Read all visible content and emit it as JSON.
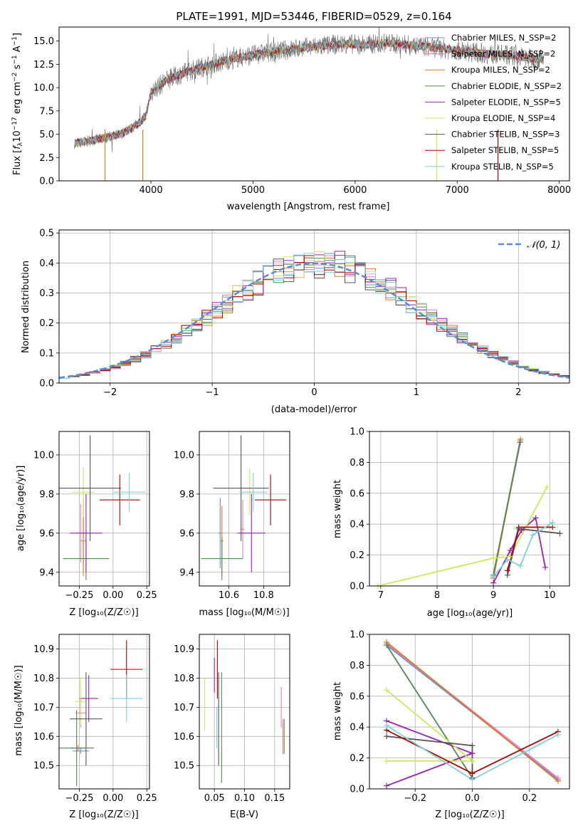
{
  "colors": {
    "chabrier_miles": "#6a8fd8",
    "salpeter_miles": "#f07ab8",
    "kroupa_miles": "#e07a22",
    "chabrier_elodie": "#4f8a4f",
    "salpeter_elodie": "#9b1fb5",
    "kroupa_elodie": "#cde85a",
    "chabrier_stelib": "#555555",
    "salpeter_stelib": "#b00000",
    "kroupa_stelib": "#7fd0d8",
    "normal": "#5b8bd8",
    "grid": "#b0b0b0"
  },
  "chart_data": [
    {
      "id": "spectrum",
      "type": "line",
      "title": "PLATE=1991, MJD=53446, FIBERID=0529, z=0.164",
      "xlabel": "wavelength [Angstrom, rest frame]",
      "ylabel": "Flux [f_λ 10^-17 erg cm^-2 s^-1 A^-1]",
      "xlim": [
        3100,
        8100
      ],
      "ylim": [
        0,
        16.5
      ],
      "xticks": [
        4000,
        5000,
        6000,
        7000,
        8000
      ],
      "yticks": [
        0.0,
        2.5,
        5.0,
        7.5,
        10.0,
        12.5,
        15.0
      ],
      "ytick_labels": [
        "0.0",
        "2.5",
        "5.0",
        "7.5",
        "10.0",
        "12.5",
        "15.0"
      ],
      "legend_position": "top-right",
      "legend": [
        {
          "name": "Chabrier MILES, N_SSP=2",
          "key": "chabrier_miles"
        },
        {
          "name": "Salpeter MILES, N_SSP=2",
          "key": "salpeter_miles"
        },
        {
          "name": "Kroupa MILES, N_SSP=2",
          "key": "kroupa_miles"
        },
        {
          "name": "Chabrier ELODIE, N_SSP=2",
          "key": "chabrier_elodie"
        },
        {
          "name": "Salpeter ELODIE, N_SSP=5",
          "key": "salpeter_elodie"
        },
        {
          "name": "Kroupa ELODIE, N_SSP=4",
          "key": "kroupa_elodie"
        },
        {
          "name": "Chabrier STELIB, N_SSP=3",
          "key": "chabrier_stelib"
        },
        {
          "name": "Salpeter STELIB, N_SSP=5",
          "key": "salpeter_stelib"
        },
        {
          "name": "Kroupa STELIB, N_SSP=5",
          "key": "kroupa_stelib"
        }
      ],
      "observed_envelope": {
        "x": [
          3250,
          3400,
          3550,
          3700,
          3800,
          3900,
          3950,
          4000,
          4150,
          4300,
          4500,
          4700,
          4900,
          5100,
          5300,
          5500,
          5700,
          5900,
          6100,
          6300,
          6500,
          6700,
          6900,
          7100,
          7300,
          7500,
          7700,
          7850
        ],
        "y": [
          4.0,
          4.3,
          4.6,
          5.0,
          5.6,
          6.3,
          7.0,
          9.5,
          10.8,
          11.5,
          12.2,
          12.8,
          13.3,
          13.7,
          14.0,
          14.3,
          14.5,
          14.7,
          14.6,
          14.8,
          14.6,
          14.4,
          14.1,
          13.9,
          13.6,
          13.5,
          13.2,
          13.0
        ]
      },
      "spikes": [
        {
          "x": 3550,
          "key": "kroupa_miles"
        },
        {
          "x": 3920,
          "key": "kroupa_miles"
        },
        {
          "x": 6800,
          "key": "kroupa_elodie"
        },
        {
          "x": 7400,
          "key": "salpeter_stelib"
        }
      ]
    },
    {
      "id": "residuals",
      "type": "histogram",
      "xlabel": "(data-model)/error",
      "ylabel": "Normed distribution",
      "xlim": [
        -2.5,
        2.5
      ],
      "ylim": [
        0,
        0.51
      ],
      "xticks": [
        -2,
        -1,
        0,
        1,
        2
      ],
      "xtick_labels": [
        "−2",
        "−1",
        "0",
        "1",
        "2"
      ],
      "yticks": [
        0.0,
        0.1,
        0.2,
        0.3,
        0.4,
        0.5
      ],
      "ytick_labels": [
        "0.0",
        "0.1",
        "0.2",
        "0.3",
        "0.4",
        "0.5"
      ],
      "legend_position": "top-right",
      "legend": [
        {
          "name": "𝒩(0, 1)",
          "key": "normal",
          "style": "dashed"
        }
      ],
      "bin_width": 0.1
    },
    {
      "id": "age_vs_Z",
      "type": "errorbar",
      "xlabel": "Z [log₁₀(Z/Z☉)]",
      "ylabel": "age  [log₁₀(age/yr)]",
      "xlim": [
        -0.4,
        0.27
      ],
      "ylim": [
        9.33,
        10.12
      ],
      "xticks": [
        -0.25,
        0.0,
        0.25
      ],
      "xtick_labels": [
        "−0.25",
        "0.00",
        "0.25"
      ],
      "yticks": [
        9.4,
        9.6,
        9.8,
        10.0
      ],
      "ytick_labels": [
        "9.4",
        "9.6",
        "9.8",
        "10.0"
      ],
      "points": [
        {
          "key": "chabrier_miles",
          "x": -0.22,
          "xerr": 0.02,
          "y": 9.6,
          "yerr": 0.18
        },
        {
          "key": "salpeter_miles",
          "x": -0.24,
          "xerr": 0.02,
          "y": 9.6,
          "yerr": 0.15
        },
        {
          "key": "kroupa_miles",
          "x": -0.22,
          "xerr": 0.02,
          "y": 9.56,
          "yerr": 0.18
        },
        {
          "key": "chabrier_elodie",
          "x": -0.2,
          "xerr": 0.17,
          "y": 9.47,
          "yerr": 0.11
        },
        {
          "key": "salpeter_elodie",
          "x": -0.2,
          "xerr": 0.12,
          "y": 9.6,
          "yerr": 0.2
        },
        {
          "key": "kroupa_elodie",
          "x": -0.22,
          "xerr": 0.08,
          "y": 9.81,
          "yerr": 0.13
        },
        {
          "key": "chabrier_stelib",
          "x": -0.17,
          "xerr": 0.23,
          "y": 9.83,
          "yerr": 0.27
        },
        {
          "key": "salpeter_stelib",
          "x": 0.05,
          "xerr": 0.15,
          "y": 9.77,
          "yerr": 0.13
        },
        {
          "key": "kroupa_stelib",
          "x": 0.12,
          "xerr": 0.12,
          "y": 9.81,
          "yerr": 0.1
        }
      ]
    },
    {
      "id": "age_vs_mass",
      "type": "errorbar",
      "xlabel": "mass [log₁₀(M/M☉)]",
      "ylabel": "",
      "xlim": [
        10.43,
        10.95
      ],
      "ylim": [
        9.33,
        10.12
      ],
      "xticks": [
        10.6,
        10.8
      ],
      "xtick_labels": [
        "10.6",
        "10.8"
      ],
      "yticks": [
        9.4,
        9.6,
        9.8,
        10.0
      ],
      "ytick_labels": [
        "9.4",
        "9.6",
        "9.8",
        "10.0"
      ],
      "points": [
        {
          "key": "chabrier_miles",
          "x": 10.55,
          "xerr": 0.01,
          "y": 9.6,
          "yerr": 0.18
        },
        {
          "key": "salpeter_miles",
          "x": 10.68,
          "xerr": 0.01,
          "y": 9.62,
          "yerr": 0.15
        },
        {
          "key": "kroupa_miles",
          "x": 10.56,
          "xerr": 0.01,
          "y": 9.56,
          "yerr": 0.18
        },
        {
          "key": "chabrier_elodie",
          "x": 10.56,
          "xerr": 0.12,
          "y": 9.47,
          "yerr": 0.11
        },
        {
          "key": "salpeter_elodie",
          "x": 10.73,
          "xerr": 0.08,
          "y": 9.6,
          "yerr": 0.2
        },
        {
          "key": "kroupa_elodie",
          "x": 10.72,
          "xerr": 0.03,
          "y": 9.81,
          "yerr": 0.12
        },
        {
          "key": "chabrier_stelib",
          "x": 10.67,
          "xerr": 0.16,
          "y": 9.83,
          "yerr": 0.27
        },
        {
          "key": "salpeter_stelib",
          "x": 10.84,
          "xerr": 0.09,
          "y": 9.77,
          "yerr": 0.13
        },
        {
          "key": "kroupa_stelib",
          "x": 10.74,
          "xerr": 0.08,
          "y": 9.81,
          "yerr": 0.1
        }
      ]
    },
    {
      "id": "weight_vs_age",
      "type": "line",
      "xlabel": "age  [log₁₀(age/yr)]",
      "ylabel": "mass weight",
      "xlim": [
        6.8,
        10.35
      ],
      "ylim": [
        0,
        1.0
      ],
      "xticks": [
        7,
        8,
        9,
        10
      ],
      "xtick_labels": [
        "7",
        "8",
        "9",
        "10"
      ],
      "yticks": [
        0.0,
        0.2,
        0.4,
        0.6,
        0.8,
        1.0
      ],
      "ytick_labels": [
        "0.0",
        "0.2",
        "0.4",
        "0.6",
        "0.8",
        "1.0"
      ],
      "series": [
        {
          "key": "chabrier_miles",
          "x": [
            9.0,
            9.48
          ],
          "y": [
            0.07,
            0.93
          ]
        },
        {
          "key": "salpeter_miles",
          "x": [
            9.0,
            9.48
          ],
          "y": [
            0.06,
            0.94
          ]
        },
        {
          "key": "kroupa_miles",
          "x": [
            9.0,
            9.48
          ],
          "y": [
            0.05,
            0.95
          ]
        },
        {
          "key": "chabrier_elodie",
          "x": [
            9.0,
            9.47
          ],
          "y": [
            0.07,
            0.93
          ]
        },
        {
          "key": "salpeter_elodie",
          "x": [
            9.0,
            9.3,
            9.5,
            9.75,
            9.92
          ],
          "y": [
            0.02,
            0.23,
            0.36,
            0.44,
            0.12
          ]
        },
        {
          "key": "kroupa_elodie",
          "x": [
            6.95,
            9.0,
            9.3,
            9.95
          ],
          "y": [
            0.0,
            0.18,
            0.19,
            0.64
          ]
        },
        {
          "key": "chabrier_stelib",
          "x": [
            9.25,
            9.45,
            10.18
          ],
          "y": [
            0.07,
            0.37,
            0.34
          ]
        },
        {
          "key": "salpeter_stelib",
          "x": [
            9.25,
            9.45,
            10.05
          ],
          "y": [
            0.1,
            0.38,
            0.38
          ]
        },
        {
          "key": "kroupa_stelib",
          "x": [
            9.0,
            9.25,
            9.48,
            9.7,
            10.05
          ],
          "y": [
            0.06,
            0.17,
            0.13,
            0.33,
            0.41
          ]
        }
      ]
    },
    {
      "id": "mass_vs_Z",
      "type": "errorbar",
      "xlabel": "Z [log₁₀(Z/Z☉)]",
      "ylabel": "mass [log₁₀(M/M☉)]",
      "xlim": [
        -0.4,
        0.27
      ],
      "ylim": [
        10.42,
        10.95
      ],
      "xticks": [
        -0.25,
        0.0,
        0.25
      ],
      "xtick_labels": [
        "−0.25",
        "0.00",
        "0.25"
      ],
      "yticks": [
        10.5,
        10.6,
        10.7,
        10.8,
        10.9
      ],
      "ytick_labels": [
        "10.5",
        "10.6",
        "10.7",
        "10.8",
        "10.9"
      ],
      "points": [
        {
          "key": "chabrier_miles",
          "x": -0.24,
          "xerr": 0.06,
          "y": 10.55,
          "yerr": 0.01
        },
        {
          "key": "salpeter_miles",
          "x": -0.24,
          "xerr": 0.04,
          "y": 10.68,
          "yerr": 0.05
        },
        {
          "key": "kroupa_miles",
          "x": -0.26,
          "xerr": 0.05,
          "y": 10.56,
          "yerr": 0.01
        },
        {
          "key": "chabrier_elodie",
          "x": -0.27,
          "xerr": 0.13,
          "y": 10.56,
          "yerr": 0.13
        },
        {
          "key": "salpeter_elodie",
          "x": -0.18,
          "xerr": 0.07,
          "y": 10.73,
          "yerr": 0.08
        },
        {
          "key": "kroupa_elodie",
          "x": -0.24,
          "xerr": 0.04,
          "y": 10.72,
          "yerr": 0.08
        },
        {
          "key": "chabrier_stelib",
          "x": -0.2,
          "xerr": 0.12,
          "y": 10.66,
          "yerr": 0.16
        },
        {
          "key": "salpeter_stelib",
          "x": 0.1,
          "xerr": 0.12,
          "y": 10.83,
          "yerr": 0.1
        },
        {
          "key": "kroupa_stelib",
          "x": 0.1,
          "xerr": 0.12,
          "y": 10.73,
          "yerr": 0.08
        }
      ]
    },
    {
      "id": "mass_vs_ebv",
      "type": "errorbar",
      "xlabel": "E(B-V)",
      "ylabel": "",
      "xlim": [
        0.025,
        0.175
      ],
      "ylim": [
        10.42,
        10.95
      ],
      "xticks": [
        0.05,
        0.1,
        0.15
      ],
      "xtick_labels": [
        "0.05",
        "0.10",
        "0.15"
      ],
      "yticks": [
        10.5,
        10.6,
        10.7,
        10.8,
        10.9
      ],
      "ytick_labels": [
        "10.5",
        "10.6",
        "10.7",
        "10.8",
        "10.9"
      ],
      "points": [
        {
          "key": "chabrier_miles",
          "x": 0.164,
          "xerr": 0.0,
          "y": 10.6,
          "yerr": 0.06
        },
        {
          "key": "salpeter_miles",
          "x": 0.161,
          "xerr": 0.0,
          "y": 10.7,
          "yerr": 0.07
        },
        {
          "key": "kroupa_miles",
          "x": 0.166,
          "xerr": 0.0,
          "y": 10.6,
          "yerr": 0.06
        },
        {
          "key": "chabrier_elodie",
          "x": 0.062,
          "xerr": 0.0,
          "y": 10.63,
          "yerr": 0.19
        },
        {
          "key": "salpeter_elodie",
          "x": 0.05,
          "xerr": 0.0,
          "y": 10.81,
          "yerr": 0.06
        },
        {
          "key": "kroupa_elodie",
          "x": 0.034,
          "xerr": 0.0,
          "y": 10.71,
          "yerr": 0.09
        },
        {
          "key": "chabrier_stelib",
          "x": 0.057,
          "xerr": 0.0,
          "y": 10.66,
          "yerr": 0.16
        },
        {
          "key": "salpeter_stelib",
          "x": 0.055,
          "xerr": 0.0,
          "y": 10.83,
          "yerr": 0.1
        },
        {
          "key": "kroupa_stelib",
          "x": 0.054,
          "xerr": 0.0,
          "y": 10.63,
          "yerr": 0.07
        }
      ]
    },
    {
      "id": "weight_vs_Z",
      "type": "line",
      "xlabel": "Z [log₁₀(Z/Z☉)]",
      "ylabel": "mass weight",
      "xlim": [
        -0.36,
        0.34
      ],
      "ylim": [
        0,
        1.0
      ],
      "xticks": [
        -0.2,
        0.0,
        0.2
      ],
      "xtick_labels": [
        "−0.2",
        "0.0",
        "0.2"
      ],
      "yticks": [
        0.0,
        0.2,
        0.4,
        0.6,
        0.8,
        1.0
      ],
      "ytick_labels": [
        "0.0",
        "0.2",
        "0.4",
        "0.6",
        "0.8",
        "1.0"
      ],
      "series": [
        {
          "key": "chabrier_miles",
          "x": [
            -0.3,
            0.3
          ],
          "y": [
            0.93,
            0.06
          ]
        },
        {
          "key": "salpeter_miles",
          "x": [
            -0.3,
            0.3
          ],
          "y": [
            0.94,
            0.07
          ]
        },
        {
          "key": "kroupa_miles",
          "x": [
            -0.3,
            0.3
          ],
          "y": [
            0.95,
            0.05
          ]
        },
        {
          "key": "chabrier_elodie",
          "x": [
            -0.3,
            0.0
          ],
          "y": [
            0.93,
            0.07
          ]
        },
        {
          "key": "salpeter_elodie",
          "x": [
            -0.3,
            0.0,
            -0.3,
            0.0
          ],
          "y": [
            0.44,
            0.23,
            0.02,
            0.23
          ]
        },
        {
          "key": "kroupa_elodie",
          "x": [
            -0.3,
            0.0,
            -0.3
          ],
          "y": [
            0.64,
            0.18,
            0.18
          ]
        },
        {
          "key": "chabrier_stelib",
          "x": [
            -0.3,
            0.0,
            0.0
          ],
          "y": [
            0.34,
            0.28,
            0.07
          ]
        },
        {
          "key": "salpeter_stelib",
          "x": [
            -0.3,
            0.0,
            0.3
          ],
          "y": [
            0.38,
            0.1,
            0.37
          ]
        },
        {
          "key": "kroupa_stelib",
          "x": [
            -0.3,
            0.0,
            0.3
          ],
          "y": [
            0.41,
            0.06,
            0.35
          ]
        }
      ]
    }
  ]
}
